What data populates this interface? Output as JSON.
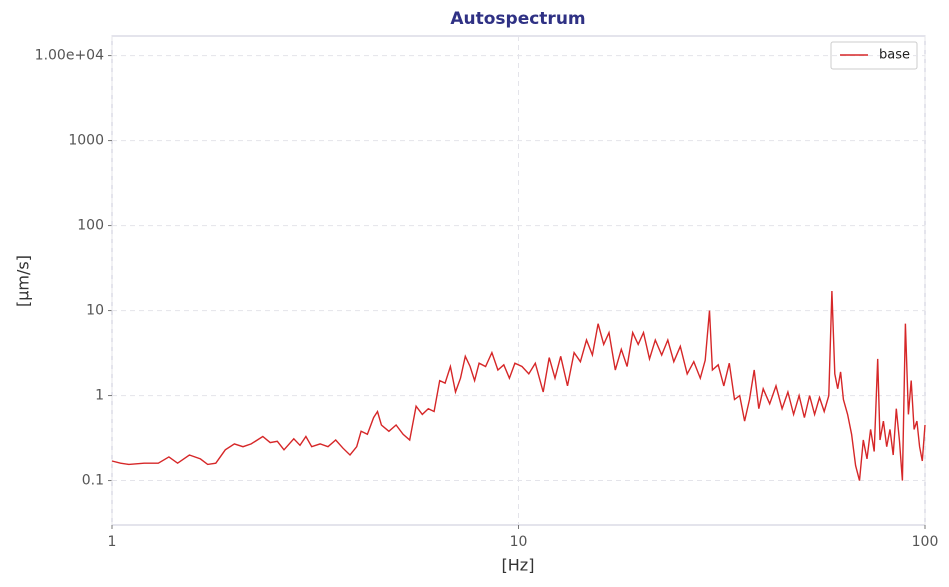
{
  "chart_data": {
    "type": "line",
    "title": "Autospectrum",
    "x_label": "[Hz]",
    "y_label": "[μm/s]",
    "x_scale": "log",
    "y_scale": "log",
    "grid": true,
    "legend": "upper right",
    "xlim": [
      1,
      100
    ],
    "xticks": [
      1,
      10,
      100
    ],
    "ylim": [
      0.03,
      17000
    ],
    "yticks": [
      0.1,
      1,
      10,
      100,
      1000,
      {
        "value": 10000,
        "label": "1.00e+04"
      }
    ],
    "x": [
      1,
      1.05,
      1.1,
      1.2,
      1.3,
      1.38,
      1.45,
      1.55,
      1.65,
      1.72,
      1.8,
      1.9,
      2.0,
      2.1,
      2.2,
      2.35,
      2.45,
      2.55,
      2.65,
      2.8,
      2.9,
      3.0,
      3.1,
      3.25,
      3.4,
      3.55,
      3.7,
      3.85,
      4.0,
      4.1,
      4.25,
      4.4,
      4.5,
      4.6,
      4.8,
      5.0,
      5.2,
      5.4,
      5.6,
      5.8,
      6.0,
      6.2,
      6.4,
      6.6,
      6.8,
      7.0,
      7.2,
      7.4,
      7.6,
      7.8,
      8.0,
      8.3,
      8.6,
      8.9,
      9.2,
      9.5,
      9.8,
      10.2,
      10.6,
      11.0,
      11.5,
      11.9,
      12.3,
      12.7,
      13.2,
      13.7,
      14.2,
      14.7,
      15.2,
      15.7,
      16.2,
      16.7,
      17.3,
      17.9,
      18.5,
      19.1,
      19.7,
      20.3,
      21.0,
      21.7,
      22.5,
      23.3,
      24.1,
      25.0,
      26.0,
      27.0,
      28.0,
      28.8,
      29.5,
      30.0,
      31.0,
      32.0,
      33.0,
      34.0,
      35.0,
      36.0,
      37.0,
      38.0,
      39.0,
      40.0,
      41.5,
      43.0,
      44.5,
      46.0,
      47.5,
      49.0,
      50.5,
      52.0,
      53.5,
      55.0,
      56.5,
      58.0,
      59.0,
      60.0,
      61.0,
      62.0,
      63.0,
      64.5,
      66.0,
      67.5,
      69.0,
      70.5,
      72.0,
      73.5,
      75.0,
      76.5,
      77.5,
      79.0,
      80.5,
      82.0,
      83.5,
      85.0,
      86.5,
      88.0,
      89.5,
      91.0,
      92.5,
      94.0,
      95.5,
      97.0,
      98.5,
      100
    ],
    "series": [
      {
        "name": "base",
        "color": "#d62728",
        "values": [
          0.17,
          0.16,
          0.155,
          0.16,
          0.16,
          0.19,
          0.16,
          0.2,
          0.18,
          0.155,
          0.16,
          0.23,
          0.27,
          0.25,
          0.27,
          0.33,
          0.28,
          0.29,
          0.23,
          0.31,
          0.26,
          0.33,
          0.25,
          0.27,
          0.25,
          0.3,
          0.24,
          0.2,
          0.25,
          0.38,
          0.35,
          0.55,
          0.65,
          0.45,
          0.38,
          0.45,
          0.35,
          0.3,
          0.75,
          0.6,
          0.7,
          0.65,
          1.5,
          1.4,
          2.2,
          1.1,
          1.6,
          2.9,
          2.2,
          1.5,
          2.4,
          2.2,
          3.2,
          2.0,
          2.3,
          1.6,
          2.4,
          2.2,
          1.8,
          2.4,
          1.1,
          2.8,
          1.6,
          2.9,
          1.3,
          3.2,
          2.5,
          4.5,
          3.0,
          7.0,
          4.0,
          5.5,
          2.0,
          3.5,
          2.2,
          5.5,
          4.0,
          5.5,
          2.7,
          4.5,
          3.0,
          4.5,
          2.5,
          3.8,
          1.8,
          2.5,
          1.6,
          2.6,
          10,
          2.0,
          2.3,
          1.3,
          2.4,
          0.9,
          1.0,
          0.5,
          0.9,
          2.0,
          0.7,
          1.2,
          0.8,
          1.3,
          0.7,
          1.1,
          0.6,
          1.0,
          0.55,
          1.0,
          0.6,
          0.95,
          0.65,
          1.0,
          17,
          1.8,
          1.2,
          1.9,
          0.9,
          0.6,
          0.35,
          0.15,
          0.1,
          0.3,
          0.18,
          0.4,
          0.22,
          2.7,
          0.3,
          0.5,
          0.25,
          0.4,
          0.2,
          0.7,
          0.3,
          0.1,
          7,
          0.6,
          1.5,
          0.4,
          0.5,
          0.25,
          0.17,
          0.45
        ]
      }
    ]
  }
}
